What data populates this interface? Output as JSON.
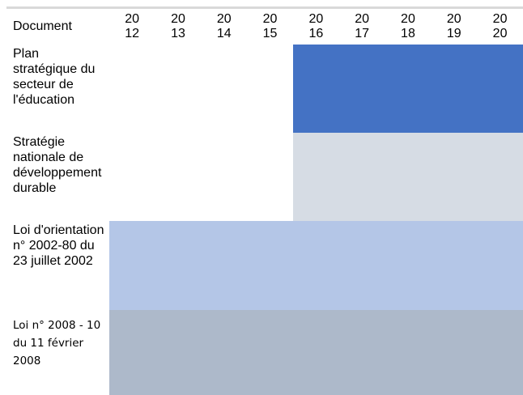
{
  "header": {
    "document_label": "Document",
    "years": [
      {
        "top": "20",
        "bottom": "12"
      },
      {
        "top": "20",
        "bottom": "13"
      },
      {
        "top": "20",
        "bottom": "14"
      },
      {
        "top": "20",
        "bottom": "15"
      },
      {
        "top": "20",
        "bottom": "16"
      },
      {
        "top": "20",
        "bottom": "17"
      },
      {
        "top": "20",
        "bottom": "18"
      },
      {
        "top": "20",
        "bottom": "19"
      },
      {
        "top": "20",
        "bottom": "20"
      }
    ]
  },
  "rows": [
    {
      "label": "Plan stratégique du secteur de l'éducation",
      "start_year": 2016,
      "end_year": 2020,
      "color": "#4472c4"
    },
    {
      "label": "Stratégie nationale de développement durable",
      "start_year": 2016,
      "end_year": 2020,
      "color": "#d6dce4"
    },
    {
      "label": "Loi d'orientation n° 2002-80 du 23 juillet 2002",
      "start_year": 2012,
      "end_year": 2020,
      "color": "#b4c6e7"
    },
    {
      "label": "Loi n° 2008 - 10 du 11 février 2008",
      "start_year": 2012,
      "end_year": 2020,
      "color": "#adb9ca"
    }
  ]
}
